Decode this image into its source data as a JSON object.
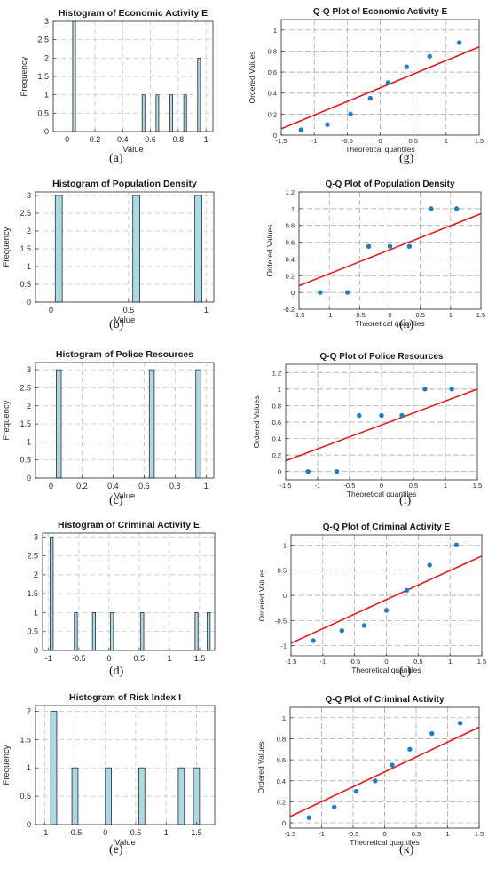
{
  "chart_data": [
    {
      "id": "a",
      "type": "histogram",
      "caption": "(a)",
      "title": "Histogram of Economic Activity E",
      "xlabel": "Value",
      "ylabel": "Frequency",
      "xlim": [
        -0.1,
        1.05
      ],
      "ylim": [
        0,
        3
      ],
      "xticks": [
        0,
        0.2,
        0.4,
        0.6,
        0.8,
        1
      ],
      "xtick_labels": [
        "0",
        "0.2",
        "0.4",
        "0.6",
        "0.8",
        "1"
      ],
      "yticks": [
        0,
        0.5,
        1,
        1.5,
        2,
        2.5,
        3
      ],
      "ytick_labels": [
        "0",
        "0.5",
        "1",
        "1.5",
        "2",
        "2.5",
        "3"
      ],
      "bin_width": 0.02,
      "bars": [
        {
          "x": 0.05,
          "count": 3
        },
        {
          "x": 0.55,
          "count": 1
        },
        {
          "x": 0.65,
          "count": 1
        },
        {
          "x": 0.75,
          "count": 1
        },
        {
          "x": 0.85,
          "count": 1
        },
        {
          "x": 0.95,
          "count": 2
        }
      ]
    },
    {
      "id": "g",
      "type": "qq",
      "caption": "(g)",
      "title": "Q-Q Plot of Economic Activity E",
      "xlabel": "Theoretical quantiles",
      "ylabel": "Ordered Values",
      "xlim": [
        -1.5,
        1.5
      ],
      "ylim": [
        0,
        1.1
      ],
      "xticks": [
        -1.5,
        -1,
        -0.5,
        0,
        0.5,
        1,
        1.5
      ],
      "xtick_labels": [
        "-1.5",
        "-1",
        "-0.5",
        "0",
        "0.5",
        "1",
        "1.5"
      ],
      "yticks": [
        0,
        0.2,
        0.4,
        0.6,
        0.8,
        1
      ],
      "ytick_labels": [
        "0",
        "0.2",
        "0.4",
        "0.6",
        "0.8",
        "1"
      ],
      "points": [
        {
          "x": -1.2,
          "y": 0.05
        },
        {
          "x": -0.8,
          "y": 0.1
        },
        {
          "x": -0.45,
          "y": 0.2
        },
        {
          "x": -0.15,
          "y": 0.35
        },
        {
          "x": 0.12,
          "y": 0.5
        },
        {
          "x": 0.4,
          "y": 0.65
        },
        {
          "x": 0.75,
          "y": 0.75
        },
        {
          "x": 1.2,
          "y": 0.88
        }
      ],
      "fit_line": {
        "x": [
          -1.5,
          1.5
        ],
        "y": [
          0.06,
          0.84
        ]
      }
    },
    {
      "id": "b",
      "type": "histogram",
      "caption": "(b)",
      "title": "Histogram of Population Density",
      "xlabel": "Value",
      "ylabel": "Frequency",
      "xlim": [
        -0.1,
        1.05
      ],
      "ylim": [
        0,
        3.1
      ],
      "xticks": [
        0,
        0.5,
        1
      ],
      "xtick_labels": [
        "0",
        "0.5",
        "1"
      ],
      "yticks": [
        0,
        0.5,
        1,
        1.5,
        2,
        2.5,
        3
      ],
      "ytick_labels": [
        "0",
        "0.5",
        "1",
        "1.5",
        "2",
        "2.5",
        "3"
      ],
      "bin_width": 0.045,
      "bars": [
        {
          "x": 0.05,
          "count": 3
        },
        {
          "x": 0.55,
          "count": 3
        },
        {
          "x": 0.95,
          "count": 3
        }
      ]
    },
    {
      "id": "h",
      "type": "qq",
      "caption": "(h)",
      "title": "Q-Q Plot of Population Density",
      "xlabel": "Theoretical quantiles",
      "ylabel": "Ordered Values",
      "xlim": [
        -1.5,
        1.5
      ],
      "ylim": [
        -0.2,
        1.2
      ],
      "xticks": [
        -1.5,
        -1,
        -0.5,
        0,
        0.5,
        1,
        1.5
      ],
      "xtick_labels": [
        "-1.5",
        "-1",
        "-0.5",
        "0",
        "0.5",
        "1",
        "1.5"
      ],
      "yticks": [
        -0.2,
        0,
        0.2,
        0.4,
        0.6,
        0.8,
        1,
        1.2
      ],
      "ytick_labels": [
        "-0.2",
        "0",
        "0.2",
        "0.4",
        "0.6",
        "0.8",
        "1",
        "1.2"
      ],
      "points": [
        {
          "x": -1.15,
          "y": 0
        },
        {
          "x": -0.7,
          "y": 0
        },
        {
          "x": -0.35,
          "y": 0.55
        },
        {
          "x": 0,
          "y": 0.55
        },
        {
          "x": 0.32,
          "y": 0.55
        },
        {
          "x": 0.68,
          "y": 1
        },
        {
          "x": 1.1,
          "y": 1
        }
      ],
      "fit_line": {
        "x": [
          -1.5,
          1.5
        ],
        "y": [
          0.08,
          0.94
        ]
      }
    },
    {
      "id": "c",
      "type": "histogram",
      "caption": "(c)",
      "title": "Histogram of Police Resources",
      "xlabel": "Value",
      "ylabel": "Frequency",
      "xlim": [
        -0.1,
        1.05
      ],
      "ylim": [
        0,
        3.2
      ],
      "xticks": [
        0,
        0.2,
        0.4,
        0.6,
        0.8,
        1
      ],
      "xtick_labels": [
        "0",
        "0.2",
        "0.4",
        "0.6",
        "0.8",
        "1"
      ],
      "yticks": [
        0,
        0.5,
        1,
        1.5,
        2,
        2.5,
        3
      ],
      "ytick_labels": [
        "0",
        "0.5",
        "1",
        "1.5",
        "2",
        "2.5",
        "3"
      ],
      "bin_width": 0.032,
      "bars": [
        {
          "x": 0.05,
          "count": 3
        },
        {
          "x": 0.65,
          "count": 3
        },
        {
          "x": 0.95,
          "count": 3
        }
      ]
    },
    {
      "id": "i",
      "type": "qq",
      "caption": "(i)",
      "title": "Q-Q Plot of Police Resources",
      "xlabel": "Theoretical quantiles",
      "ylabel": "Ordered Values",
      "xlim": [
        -1.5,
        1.5
      ],
      "ylim": [
        -0.1,
        1.3
      ],
      "xticks": [
        -1.5,
        -1,
        -0.5,
        0,
        0.5,
        1,
        1.5
      ],
      "xtick_labels": [
        "-1.5",
        "-1",
        "-0.5",
        "0",
        "0.5",
        "1",
        "1.5"
      ],
      "yticks": [
        0,
        0.2,
        0.4,
        0.6,
        0.8,
        1,
        1.2
      ],
      "ytick_labels": [
        "0",
        "0.2",
        "0.4",
        "0.6",
        "0.8",
        "1",
        "1.2"
      ],
      "points": [
        {
          "x": -1.15,
          "y": 0
        },
        {
          "x": -0.7,
          "y": 0
        },
        {
          "x": -0.35,
          "y": 0.68
        },
        {
          "x": 0,
          "y": 0.68
        },
        {
          "x": 0.32,
          "y": 0.68
        },
        {
          "x": 0.68,
          "y": 1
        },
        {
          "x": 1.1,
          "y": 1
        }
      ],
      "fit_line": {
        "x": [
          -1.5,
          1.5
        ],
        "y": [
          0.13,
          1
        ]
      }
    },
    {
      "id": "d",
      "type": "histogram",
      "caption": "(d)",
      "title": "Histogram of Criminal Activity E",
      "xlabel": "",
      "ylabel": "",
      "xlim": [
        -1.1,
        1.75
      ],
      "ylim": [
        0,
        3.1
      ],
      "xticks": [
        -1,
        -0.5,
        0,
        0.5,
        1,
        1.5
      ],
      "xtick_labels": [
        "-1",
        "-0.5",
        "0",
        "0.5",
        "1",
        "1.5"
      ],
      "yticks": [
        0,
        0.5,
        1,
        1.5,
        2,
        2.5,
        3
      ],
      "ytick_labels": [
        "0",
        "0.5",
        "1",
        "1.5",
        "2",
        "2.5",
        "3"
      ],
      "bin_width": 0.05,
      "bars": [
        {
          "x": -0.95,
          "count": 3
        },
        {
          "x": -0.55,
          "count": 1
        },
        {
          "x": -0.25,
          "count": 1
        },
        {
          "x": 0.05,
          "count": 1
        },
        {
          "x": 0.55,
          "count": 1
        },
        {
          "x": 1.45,
          "count": 1
        },
        {
          "x": 1.65,
          "count": 1
        }
      ]
    },
    {
      "id": "j",
      "type": "qq",
      "caption": "(j)",
      "title": "Q-Q Plot of Criminal Activity E",
      "xlabel": "Theoretical quantiles",
      "ylabel": "Ordered Values",
      "xlim": [
        -1.5,
        1.5
      ],
      "ylim": [
        -1.2,
        1.2
      ],
      "xticks": [
        -1.5,
        -1,
        -0.5,
        0,
        0.5,
        1,
        1.5
      ],
      "xtick_labels": [
        "-1.5",
        "-1",
        "-0.5",
        "0",
        "0.5",
        "1",
        "1.5"
      ],
      "yticks": [
        -1,
        -0.5,
        0,
        0.5,
        1
      ],
      "ytick_labels": [
        "-1",
        "-0.5",
        "0",
        "0.5",
        "1"
      ],
      "points": [
        {
          "x": -1.15,
          "y": -0.9
        },
        {
          "x": -0.7,
          "y": -0.7
        },
        {
          "x": -0.35,
          "y": -0.6
        },
        {
          "x": 0,
          "y": -0.3
        },
        {
          "x": 0.32,
          "y": 0.1
        },
        {
          "x": 0.68,
          "y": 0.6
        },
        {
          "x": 1.1,
          "y": 1
        }
      ],
      "fit_line": {
        "x": [
          -1.5,
          1.5
        ],
        "y": [
          -0.95,
          0.78
        ]
      }
    },
    {
      "id": "e",
      "type": "histogram",
      "caption": "(e)",
      "title": "Histogram of Risk Index I",
      "xlabel": "Value",
      "ylabel": "Frequency",
      "xlim": [
        -1.15,
        1.8
      ],
      "ylim": [
        0,
        2.1
      ],
      "xticks": [
        -1,
        -0.5,
        0,
        0.5,
        1,
        1.5
      ],
      "xtick_labels": [
        "-1",
        "-0.5",
        "0",
        "0.5",
        "1",
        "1.5"
      ],
      "yticks": [
        0,
        0.5,
        1,
        1.5,
        2
      ],
      "ytick_labels": [
        "0",
        "0.5",
        "1",
        "1.5",
        "2"
      ],
      "bin_width": 0.1,
      "bars": [
        {
          "x": -0.85,
          "count": 2
        },
        {
          "x": -0.5,
          "count": 1
        },
        {
          "x": 0.05,
          "count": 1
        },
        {
          "x": 0.6,
          "count": 1
        },
        {
          "x": 1.25,
          "count": 1
        },
        {
          "x": 1.5,
          "count": 1
        }
      ]
    },
    {
      "id": "k",
      "type": "qq",
      "caption": "(k)",
      "title": "Q-Q Plot of Criminal Activity",
      "xlabel": "Theoretical quantiles",
      "ylabel": "Ordered Values",
      "xlim": [
        -1.5,
        1.5
      ],
      "ylim": [
        -0.05,
        1.1
      ],
      "xticks": [
        -1.5,
        -1,
        -0.5,
        0,
        0.5,
        1,
        1.5
      ],
      "xtick_labels": [
        "-1.5",
        "-1",
        "-0.5",
        "0",
        "0.5",
        "1",
        "1.5"
      ],
      "yticks": [
        0,
        0.2,
        0.4,
        0.6,
        0.8,
        1
      ],
      "ytick_labels": [
        "0",
        "0.2",
        "0.4",
        "0.6",
        "0.8",
        "1"
      ],
      "points": [
        {
          "x": -1.2,
          "y": 0.05
        },
        {
          "x": -0.8,
          "y": 0.15
        },
        {
          "x": -0.45,
          "y": 0.3
        },
        {
          "x": -0.15,
          "y": 0.4
        },
        {
          "x": 0.12,
          "y": 0.55
        },
        {
          "x": 0.4,
          "y": 0.7
        },
        {
          "x": 0.75,
          "y": 0.85
        },
        {
          "x": 1.2,
          "y": 0.95
        }
      ],
      "fit_line": {
        "x": [
          -1.5,
          1.5
        ],
        "y": [
          0.06,
          0.91
        ]
      }
    }
  ],
  "colors": {
    "hist_fill": "#add8e6",
    "hist_edge": "#2b2b2b",
    "qq_point": "#1f7ec1",
    "qq_line": "#e8171b",
    "grid": "#bdbdbd",
    "axis": "#262626"
  }
}
